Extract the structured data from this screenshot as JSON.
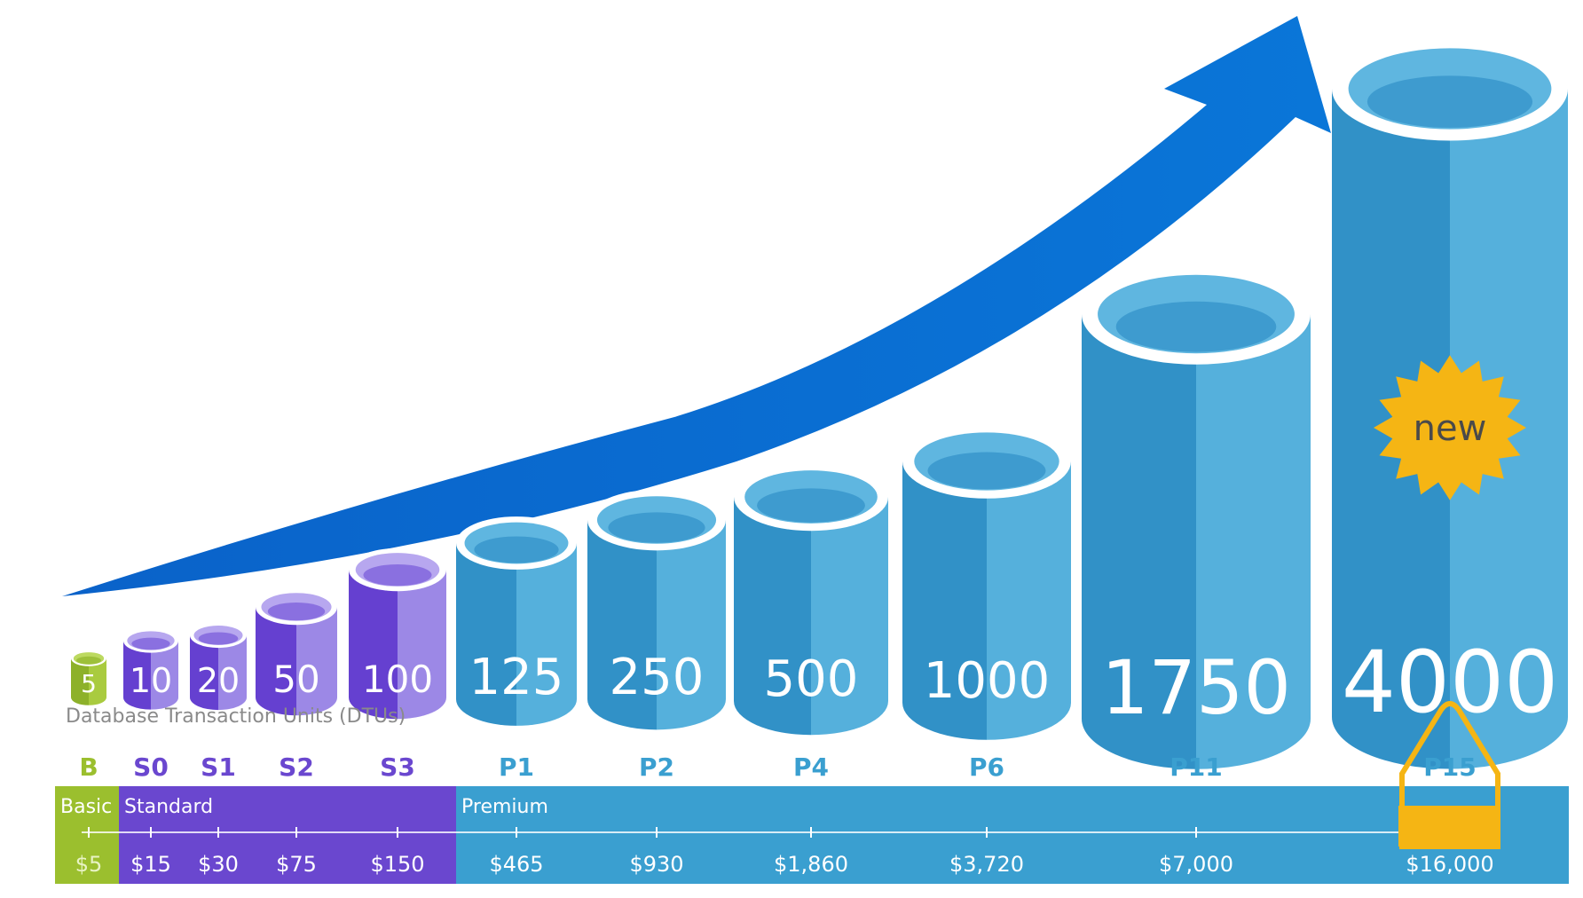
{
  "dtu_caption": "Database Transaction Units (DTUs)",
  "new_badge": "new",
  "colors": {
    "basic": "#9bbf2e",
    "standard": "#6a47cf",
    "premium": "#3a9fd0",
    "arrow": "#0a6fd2",
    "badge": "#f5b514"
  },
  "tier_bands": [
    {
      "key": "basic",
      "label": "Basic"
    },
    {
      "key": "standard",
      "label": "Standard"
    },
    {
      "key": "premium",
      "label": "Premium"
    }
  ],
  "levels": [
    {
      "code": "B",
      "dtu": "5",
      "price": "$5",
      "tier": "basic"
    },
    {
      "code": "S0",
      "dtu": "10",
      "price": "$15",
      "tier": "standard"
    },
    {
      "code": "S1",
      "dtu": "20",
      "price": "$30",
      "tier": "standard"
    },
    {
      "code": "S2",
      "dtu": "50",
      "price": "$75",
      "tier": "standard"
    },
    {
      "code": "S3",
      "dtu": "100",
      "price": "$150",
      "tier": "standard"
    },
    {
      "code": "P1",
      "dtu": "125",
      "price": "$465",
      "tier": "premium"
    },
    {
      "code": "P2",
      "dtu": "250",
      "price": "$930",
      "tier": "premium"
    },
    {
      "code": "P4",
      "dtu": "500",
      "price": "$1,860",
      "tier": "premium"
    },
    {
      "code": "P6",
      "dtu": "1000",
      "price": "$3,720",
      "tier": "premium"
    },
    {
      "code": "P11",
      "dtu": "1750",
      "price": "$7,000",
      "tier": "premium"
    },
    {
      "code": "P15",
      "dtu": "4000",
      "price": "$16,000",
      "tier": "premium",
      "is_new": true
    }
  ]
}
